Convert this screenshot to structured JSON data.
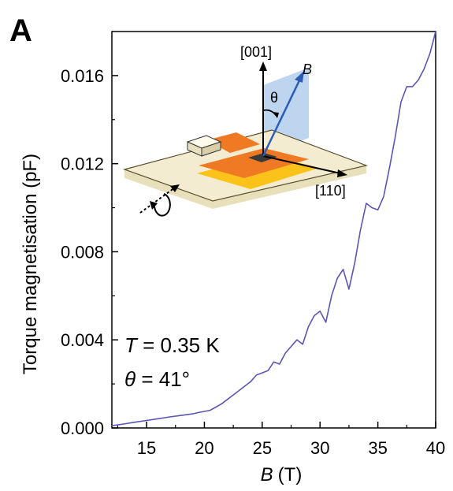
{
  "panel_label": "A",
  "chart_data": {
    "type": "line",
    "xlabel_var": "B",
    "xlabel_unit": "(T)",
    "ylabel": "Torque magnetisation (pF)",
    "xlim": [
      12,
      40
    ],
    "ylim": [
      0,
      0.018
    ],
    "xticks": [
      "15",
      "20",
      "25",
      "30",
      "35",
      "40"
    ],
    "xtick_values": [
      15,
      20,
      25,
      30,
      35,
      40
    ],
    "yticks": [
      "0.000",
      "0.004",
      "0.008",
      "0.012",
      "0.016"
    ],
    "ytick_values": [
      0,
      0.004,
      0.008,
      0.012,
      0.016
    ],
    "grid": false,
    "line_color": "#5a55b8",
    "series": [
      {
        "x": [
          12,
          13,
          14,
          15,
          16,
          17,
          18,
          19,
          19.5,
          20,
          20.5,
          21,
          21.5,
          22,
          22.5,
          23,
          23.5,
          24,
          24.5,
          25,
          25.5,
          26,
          26.5,
          27,
          27.5,
          28,
          28.5,
          29,
          29.5,
          30,
          30.5,
          31,
          31.5,
          32,
          32.5,
          33,
          33.5,
          34,
          34.5,
          35,
          35.5,
          36,
          36.5,
          37,
          37.5,
          38,
          38.5,
          39,
          39.5,
          40
        ],
        "y": [
          0.0001,
          0.00018,
          0.00026,
          0.00034,
          0.00042,
          0.0005,
          0.00057,
          0.00064,
          0.0007,
          0.00075,
          0.0008,
          0.00095,
          0.0011,
          0.0013,
          0.0015,
          0.0017,
          0.0019,
          0.0021,
          0.0024,
          0.0025,
          0.0026,
          0.003,
          0.0029,
          0.0034,
          0.0037,
          0.004,
          0.0038,
          0.0046,
          0.0051,
          0.0053,
          0.0048,
          0.006,
          0.0068,
          0.0072,
          0.0063,
          0.0075,
          0.009,
          0.0102,
          0.01,
          0.0099,
          0.0105,
          0.0118,
          0.0132,
          0.0148,
          0.0155,
          0.0155,
          0.0158,
          0.0163,
          0.017,
          0.018
        ]
      }
    ]
  },
  "annotations": {
    "temp_var": "T",
    "temp_value": " = 0.35 K",
    "angle_var": "θ",
    "angle_value": " = 41°"
  },
  "inset": {
    "label_001": "[001]",
    "label_110": "[110]",
    "label_B": "B",
    "label_theta": "θ",
    "colors": {
      "plate": "#f3ecd0",
      "plate_edge": "#e8dfbb",
      "orange": "#f07a24",
      "yellow": "#fbc21a",
      "field_plane": "#a7c7ea",
      "arrow_B": "#2b5cb8",
      "sample": "#3a3a3a"
    }
  }
}
